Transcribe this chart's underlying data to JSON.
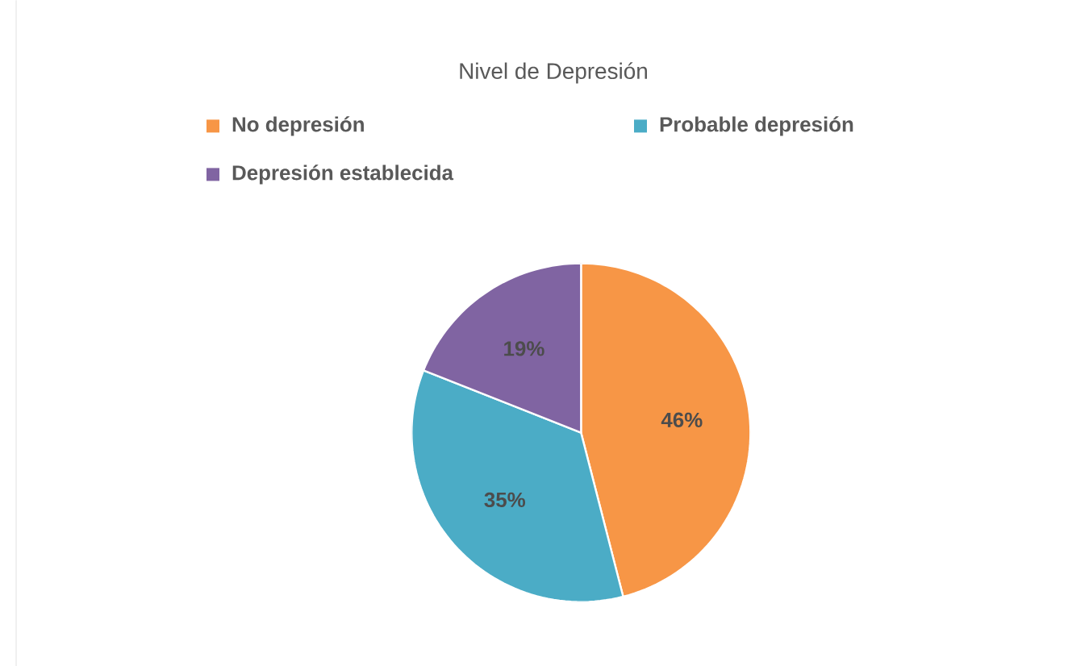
{
  "chart_data": {
    "type": "pie",
    "title": "Nivel de Depresión",
    "categories": [
      "No depresión",
      "Probable depresión",
      "Depresión establecida"
    ],
    "values": [
      46,
      35,
      19
    ],
    "colors": [
      "#f79646",
      "#4bacc6",
      "#8064a2"
    ],
    "value_labels": [
      "46%",
      "35%",
      "19%"
    ],
    "legend": "top"
  }
}
